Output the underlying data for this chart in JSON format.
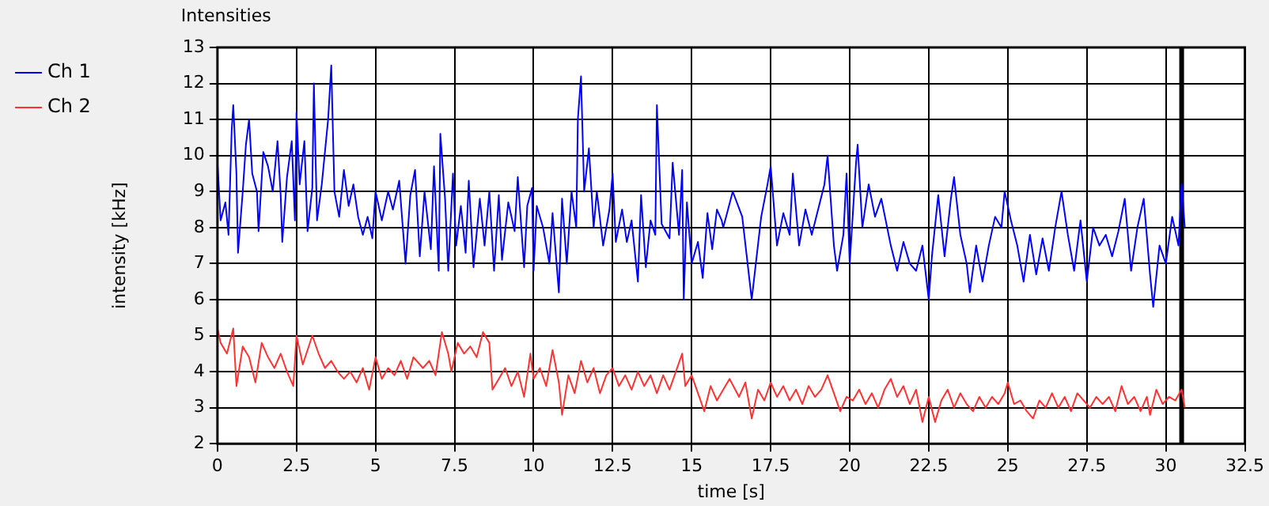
{
  "chart_data": {
    "type": "line",
    "title": "Intensities",
    "xlabel": "time [s]",
    "ylabel": "intensity [kHz]",
    "xlim": [
      0,
      32.5
    ],
    "xticks": [
      0,
      2.5,
      5,
      7.5,
      10,
      12.5,
      15,
      17.5,
      20,
      22.5,
      25,
      27.5,
      30,
      32.5
    ],
    "ylim": [
      2,
      13
    ],
    "yticks": [
      2,
      3,
      4,
      5,
      6,
      7,
      8,
      9,
      10,
      11,
      12,
      13
    ],
    "grid": true,
    "legend": "top left",
    "marker": "none",
    "line_style": "solid",
    "ref_lines": [
      {
        "axis": "x",
        "value": 30.5,
        "color": "#000000"
      }
    ],
    "series": [
      {
        "name": "Ch 1",
        "color": "#0000ff",
        "x": [
          0,
          0.1,
          0.25,
          0.35,
          0.45,
          0.5,
          0.6,
          0.65,
          0.8,
          0.9,
          1.0,
          1.1,
          1.25,
          1.3,
          1.45,
          1.6,
          1.75,
          1.9,
          2.0,
          2.05,
          2.2,
          2.35,
          2.45,
          2.5,
          2.6,
          2.75,
          2.85,
          3.0,
          3.05,
          3.15,
          3.3,
          3.5,
          3.6,
          3.7,
          3.85,
          4.0,
          4.15,
          4.3,
          4.45,
          4.6,
          4.75,
          4.9,
          5.0,
          5.2,
          5.4,
          5.55,
          5.75,
          5.95,
          6.1,
          6.25,
          6.4,
          6.55,
          6.75,
          6.85,
          7.0,
          7.05,
          7.2,
          7.3,
          7.45,
          7.55,
          7.7,
          7.85,
          7.95,
          8.1,
          8.3,
          8.45,
          8.6,
          8.75,
          8.9,
          9.0,
          9.2,
          9.4,
          9.5,
          9.7,
          9.8,
          9.95,
          10.0,
          10.1,
          10.3,
          10.5,
          10.6,
          10.8,
          10.9,
          11.05,
          11.2,
          11.35,
          11.4,
          11.5,
          11.6,
          11.75,
          11.9,
          12.0,
          12.2,
          12.4,
          12.5,
          12.6,
          12.8,
          12.95,
          13.1,
          13.3,
          13.4,
          13.55,
          13.7,
          13.85,
          13.9,
          14.05,
          14.3,
          14.4,
          14.6,
          14.7,
          14.75,
          14.85,
          15.0,
          15.2,
          15.35,
          15.5,
          15.65,
          15.8,
          15.95,
          16.0,
          16.3,
          16.6,
          16.9,
          17.2,
          17.4,
          17.5,
          17.7,
          17.9,
          18.1,
          18.2,
          18.4,
          18.6,
          18.8,
          19.0,
          19.2,
          19.3,
          19.5,
          19.6,
          19.8,
          19.9,
          20.0,
          20.2,
          20.25,
          20.4,
          20.6,
          20.8,
          21.0,
          21.3,
          21.5,
          21.7,
          21.9,
          22.1,
          22.3,
          22.5,
          22.6,
          22.8,
          23.0,
          23.2,
          23.3,
          23.5,
          23.7,
          23.8,
          24.0,
          24.2,
          24.4,
          24.6,
          24.8,
          24.9,
          25.1,
          25.3,
          25.5,
          25.7,
          25.9,
          26.1,
          26.3,
          26.5,
          26.7,
          26.9,
          27.1,
          27.3,
          27.5,
          27.7,
          27.9,
          28.1,
          28.3,
          28.5,
          28.7,
          28.9,
          29.1,
          29.3,
          29.5,
          29.6,
          29.8,
          30.0,
          30.2,
          30.4,
          30.5,
          30.6
        ],
        "values": [
          9.8,
          8.2,
          8.7,
          7.8,
          10.7,
          11.4,
          9.5,
          7.3,
          9.0,
          10.3,
          11.0,
          9.5,
          9.0,
          7.9,
          10.1,
          9.7,
          9.0,
          10.4,
          8.9,
          7.6,
          9.4,
          10.4,
          8.2,
          11.2,
          9.2,
          10.4,
          7.9,
          9.1,
          12.0,
          8.2,
          9.2,
          11.0,
          12.5,
          9.0,
          8.3,
          9.6,
          8.6,
          9.2,
          8.3,
          7.8,
          8.3,
          7.7,
          9.0,
          8.2,
          9.0,
          8.5,
          9.3,
          7.0,
          8.9,
          9.6,
          7.2,
          9.0,
          7.4,
          9.7,
          6.8,
          10.6,
          8.8,
          6.8,
          9.5,
          7.5,
          8.6,
          7.3,
          9.3,
          6.9,
          8.8,
          7.5,
          9.0,
          6.8,
          8.9,
          7.1,
          8.7,
          7.9,
          9.4,
          6.9,
          8.6,
          9.1,
          6.8,
          8.6,
          8.0,
          7.0,
          8.4,
          6.2,
          8.8,
          7.0,
          9.0,
          8.0,
          11.0,
          12.2,
          9.0,
          10.2,
          8.0,
          9.0,
          7.5,
          8.5,
          9.5,
          7.6,
          8.5,
          7.6,
          8.2,
          6.5,
          8.9,
          6.9,
          8.2,
          7.8,
          11.4,
          8.1,
          7.7,
          9.8,
          7.8,
          9.6,
          6.0,
          8.7,
          7.0,
          7.6,
          6.6,
          8.4,
          7.4,
          8.5,
          8.2,
          8.0,
          9.0,
          8.3,
          6.0,
          8.3,
          9.2,
          9.7,
          7.5,
          8.4,
          7.8,
          9.5,
          7.5,
          8.5,
          7.8,
          8.5,
          9.2,
          10.0,
          7.5,
          6.8,
          7.8,
          9.5,
          7.0,
          9.8,
          10.3,
          8.0,
          9.2,
          8.3,
          8.8,
          7.5,
          6.8,
          7.6,
          7.0,
          6.8,
          7.5,
          6.0,
          7.2,
          8.9,
          7.2,
          8.8,
          9.4,
          7.8,
          7.0,
          6.2,
          7.5,
          6.5,
          7.5,
          8.3,
          8.0,
          9.0,
          8.2,
          7.5,
          6.5,
          7.8,
          6.7,
          7.7,
          6.8,
          8.0,
          9.0,
          7.8,
          6.8,
          8.2,
          6.5,
          8.0,
          7.5,
          7.8,
          7.2,
          7.9,
          8.8,
          6.8,
          8.0,
          8.8,
          6.7,
          5.8,
          7.5,
          7.0,
          8.3,
          7.5,
          9.2,
          8.0
        ]
      },
      {
        "name": "Ch 2",
        "color": "#ff3333",
        "x": [
          0,
          0.1,
          0.3,
          0.5,
          0.6,
          0.8,
          1.0,
          1.2,
          1.4,
          1.6,
          1.8,
          2.0,
          2.2,
          2.4,
          2.5,
          2.7,
          3.0,
          3.2,
          3.4,
          3.6,
          3.8,
          4.0,
          4.2,
          4.4,
          4.6,
          4.8,
          5.0,
          5.2,
          5.4,
          5.6,
          5.8,
          6.0,
          6.2,
          6.5,
          6.7,
          6.9,
          7.1,
          7.3,
          7.4,
          7.6,
          7.8,
          8.0,
          8.2,
          8.4,
          8.6,
          8.7,
          8.9,
          9.1,
          9.3,
          9.5,
          9.7,
          9.9,
          10.0,
          10.2,
          10.4,
          10.6,
          10.8,
          10.9,
          11.1,
          11.3,
          11.5,
          11.7,
          11.9,
          12.1,
          12.3,
          12.5,
          12.7,
          12.9,
          13.1,
          13.3,
          13.5,
          13.7,
          13.9,
          14.1,
          14.3,
          14.5,
          14.7,
          14.8,
          15.0,
          15.2,
          15.4,
          15.6,
          15.8,
          16.0,
          16.2,
          16.5,
          16.7,
          16.9,
          17.1,
          17.3,
          17.5,
          17.7,
          17.9,
          18.1,
          18.3,
          18.5,
          18.7,
          18.9,
          19.1,
          19.3,
          19.5,
          19.7,
          19.9,
          20.1,
          20.3,
          20.5,
          20.7,
          20.9,
          21.1,
          21.3,
          21.5,
          21.7,
          21.9,
          22.1,
          22.3,
          22.5,
          22.7,
          22.9,
          23.1,
          23.3,
          23.5,
          23.7,
          23.9,
          24.1,
          24.3,
          24.5,
          24.7,
          24.9,
          25.0,
          25.2,
          25.4,
          25.6,
          25.8,
          26.0,
          26.2,
          26.4,
          26.6,
          26.8,
          27.0,
          27.2,
          27.4,
          27.6,
          27.8,
          28.0,
          28.2,
          28.4,
          28.6,
          28.8,
          29.0,
          29.2,
          29.4,
          29.5,
          29.7,
          29.9,
          30.1,
          30.3,
          30.5,
          30.6
        ],
        "values": [
          5.2,
          4.8,
          4.5,
          5.2,
          3.6,
          4.7,
          4.4,
          3.7,
          4.8,
          4.4,
          4.1,
          4.5,
          4.0,
          3.6,
          5.0,
          4.2,
          5.0,
          4.5,
          4.1,
          4.3,
          4.0,
          3.8,
          4.0,
          3.7,
          4.1,
          3.5,
          4.4,
          3.8,
          4.1,
          3.9,
          4.3,
          3.8,
          4.4,
          4.1,
          4.3,
          3.9,
          5.1,
          4.5,
          4.0,
          4.8,
          4.5,
          4.7,
          4.4,
          5.1,
          4.8,
          3.5,
          3.8,
          4.1,
          3.6,
          4.0,
          3.3,
          4.5,
          3.8,
          4.1,
          3.6,
          4.6,
          3.7,
          2.8,
          3.9,
          3.4,
          4.3,
          3.7,
          4.1,
          3.4,
          3.9,
          4.1,
          3.6,
          3.9,
          3.5,
          4.0,
          3.6,
          3.9,
          3.4,
          3.9,
          3.5,
          4.0,
          4.5,
          3.6,
          3.9,
          3.4,
          2.9,
          3.6,
          3.2,
          3.5,
          3.8,
          3.3,
          3.7,
          2.7,
          3.5,
          3.2,
          3.7,
          3.3,
          3.6,
          3.2,
          3.5,
          3.1,
          3.6,
          3.3,
          3.5,
          3.9,
          3.4,
          2.9,
          3.3,
          3.2,
          3.5,
          3.1,
          3.4,
          3.0,
          3.5,
          3.8,
          3.3,
          3.6,
          3.1,
          3.5,
          2.6,
          3.3,
          2.6,
          3.2,
          3.5,
          3.0,
          3.4,
          3.1,
          2.9,
          3.3,
          3.0,
          3.3,
          3.1,
          3.4,
          3.7,
          3.1,
          3.2,
          2.9,
          2.7,
          3.2,
          3.0,
          3.4,
          3.0,
          3.3,
          2.9,
          3.4,
          3.2,
          3.0,
          3.3,
          3.1,
          3.3,
          2.9,
          3.6,
          3.1,
          3.3,
          2.9,
          3.3,
          2.8,
          3.5,
          3.1,
          3.3,
          3.2,
          3.5,
          3.0
        ]
      }
    ]
  }
}
